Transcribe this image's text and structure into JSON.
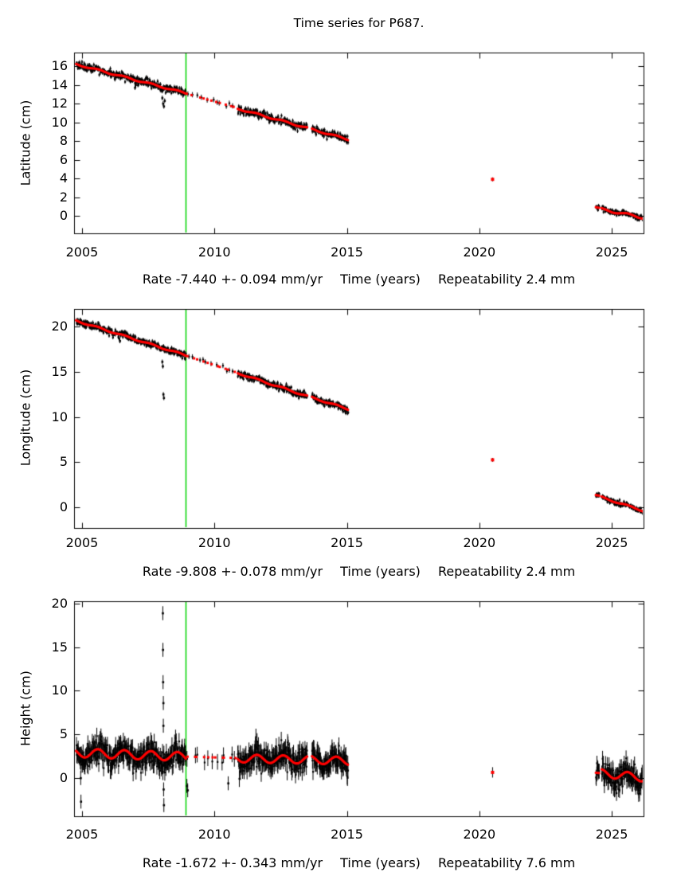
{
  "title": "Time series for P687.",
  "station": "P687",
  "colors": {
    "background": "#ffffff",
    "axis": "#000000",
    "points": "#000000",
    "trend_line": "#ff0000",
    "event_line": "#00d400",
    "text": "#000000"
  },
  "chart_data": {
    "type": "scatter",
    "title": "Time series for P687.",
    "x_axis": {
      "label": "Time (years)",
      "ticks": [
        2005,
        2010,
        2015,
        2020,
        2025
      ],
      "tick_labels": [
        "2005",
        "2010",
        "2015",
        "2020",
        "2025"
      ],
      "range": [
        2004.7,
        2026.2
      ]
    },
    "event_line_year": 2008.92,
    "plots": [
      {
        "id": "latitude",
        "ylabel": "Latitude (cm)",
        "yticks": [
          0,
          2,
          4,
          6,
          8,
          10,
          12,
          14,
          16
        ],
        "ytick_labels": [
          "0",
          "2",
          "4",
          "6",
          "8",
          "10",
          "12",
          "14",
          "16"
        ],
        "ylim": [
          -1.87,
          17.45
        ],
        "rate_mm_per_yr": -7.44,
        "rate_error_mm_per_yr": 0.094,
        "repeatability_mm": 2.4,
        "caption": {
          "rate": "Rate -7.440 +- 0.094 mm/yr",
          "time": "Time (years)",
          "repeatability": "Repeatability 2.4 mm"
        },
        "segments": [
          {
            "t": [
              2004.78,
              2008.92
            ],
            "v": [
              16.2,
              13.1
            ],
            "sigma": 0.2,
            "bar": 0.22,
            "seasonal": 0.08,
            "density": 80,
            "sparse": false
          },
          {
            "t": [
              2008.95,
              2010.85
            ],
            "v": [
              13.05,
              11.55
            ],
            "sigma": 0.15,
            "bar": 0.28,
            "seasonal": 0.0,
            "density": 6,
            "sparse": true
          },
          {
            "t": [
              2010.88,
              2013.5
            ],
            "v": [
              11.45,
              9.4
            ],
            "sigma": 0.2,
            "bar": 0.22,
            "seasonal": 0.08,
            "density": 80,
            "sparse": false
          },
          {
            "t": [
              2013.68,
              2015.05
            ],
            "v": [
              9.25,
              8.15
            ],
            "sigma": 0.2,
            "bar": 0.22,
            "seasonal": 0.08,
            "density": 80,
            "sparse": false
          },
          {
            "t": [
              2024.4,
              2024.53
            ],
            "v": [
              0.92,
              0.85
            ],
            "sigma": 0.12,
            "bar": 0.18,
            "seasonal": 0.0,
            "density": 80,
            "sparse": false
          },
          {
            "t": [
              2024.62,
              2026.2
            ],
            "v": [
              0.7,
              -0.2
            ],
            "sigma": 0.14,
            "bar": 0.18,
            "seasonal": 0.12,
            "density": 80,
            "sparse": false
          }
        ],
        "isolated_points": [
          {
            "t": 2020.5,
            "v": 3.9
          }
        ],
        "outliers": [
          [
            2007.0,
            13.7
          ],
          [
            2007.03,
            14.0
          ],
          [
            2008.03,
            12.6
          ],
          [
            2008.06,
            12.0
          ],
          [
            2008.09,
            11.7
          ],
          [
            2008.12,
            12.3
          ]
        ],
        "outlier_bar": 0.25
      },
      {
        "id": "longitude",
        "ylabel": "Longitude (cm)",
        "yticks": [
          0,
          5,
          10,
          15,
          20
        ],
        "ytick_labels": [
          "0",
          "5",
          "10",
          "15",
          "20"
        ],
        "ylim": [
          -2.29,
          21.94
        ],
        "rate_mm_per_yr": -9.808,
        "rate_error_mm_per_yr": 0.078,
        "repeatability_mm": 2.4,
        "caption": {
          "rate": "Rate -9.808 +- 0.078 mm/yr",
          "time": "Time (years)",
          "repeatability": "Repeatability 2.4 mm"
        },
        "segments": [
          {
            "t": [
              2004.78,
              2008.92
            ],
            "v": [
              20.65,
              16.8
            ],
            "sigma": 0.2,
            "bar": 0.22,
            "seasonal": 0.08,
            "density": 80,
            "sparse": false
          },
          {
            "t": [
              2008.95,
              2010.85
            ],
            "v": [
              16.75,
              14.9
            ],
            "sigma": 0.15,
            "bar": 0.28,
            "seasonal": 0.0,
            "density": 6,
            "sparse": true
          },
          {
            "t": [
              2010.88,
              2013.5
            ],
            "v": [
              14.85,
              12.3
            ],
            "sigma": 0.2,
            "bar": 0.22,
            "seasonal": 0.08,
            "density": 80,
            "sparse": false
          },
          {
            "t": [
              2013.68,
              2015.05
            ],
            "v": [
              12.15,
              10.85
            ],
            "sigma": 0.2,
            "bar": 0.22,
            "seasonal": 0.08,
            "density": 80,
            "sparse": false
          },
          {
            "t": [
              2024.4,
              2024.53
            ],
            "v": [
              1.35,
              1.28
            ],
            "sigma": 0.12,
            "bar": 0.18,
            "seasonal": 0.0,
            "density": 80,
            "sparse": false
          },
          {
            "t": [
              2024.62,
              2026.2
            ],
            "v": [
              1.1,
              -0.4
            ],
            "sigma": 0.14,
            "bar": 0.18,
            "seasonal": 0.08,
            "density": 80,
            "sparse": false
          }
        ],
        "isolated_points": [
          {
            "t": 2020.5,
            "v": 5.25
          }
        ],
        "outliers": [
          [
            2006.4,
            18.7
          ],
          [
            2006.43,
            18.4
          ],
          [
            2008.03,
            16.1
          ],
          [
            2008.05,
            15.6
          ],
          [
            2008.07,
            12.5
          ],
          [
            2008.09,
            12.1
          ]
        ],
        "outlier_bar": 0.25
      },
      {
        "id": "height",
        "ylabel": "Height (cm)",
        "yticks": [
          0,
          5,
          10,
          15,
          20
        ],
        "ytick_labels": [
          "0",
          "5",
          "10",
          "15",
          "20"
        ],
        "ylim": [
          -4.38,
          20.27
        ],
        "rate_mm_per_yr": -1.672,
        "rate_error_mm_per_yr": 0.343,
        "repeatability_mm": 7.6,
        "caption": {
          "rate": "Rate -1.672 +- 0.343 mm/yr",
          "time": "Time (years)",
          "repeatability": "Repeatability 7.6 mm"
        },
        "segments": [
          {
            "t": [
              2004.78,
              2008.92
            ],
            "v": [
              2.9,
              2.45
            ],
            "sigma": 0.7,
            "bar": 0.95,
            "seasonal": 0.5,
            "density": 80,
            "sparse": false
          },
          {
            "t": [
              2008.95,
              2010.85
            ],
            "v": [
              2.45,
              2.3
            ],
            "sigma": 0.5,
            "bar": 0.9,
            "seasonal": 0.0,
            "density": 6,
            "sparse": true
          },
          {
            "t": [
              2010.88,
              2013.5
            ],
            "v": [
              2.25,
              2.1
            ],
            "sigma": 0.7,
            "bar": 0.95,
            "seasonal": 0.45,
            "density": 80,
            "sparse": false
          },
          {
            "t": [
              2013.68,
              2015.05
            ],
            "v": [
              2.1,
              1.95
            ],
            "sigma": 0.7,
            "bar": 0.95,
            "seasonal": 0.45,
            "density": 80,
            "sparse": false
          },
          {
            "t": [
              2024.4,
              2024.53
            ],
            "v": [
              0.6,
              0.58
            ],
            "sigma": 0.55,
            "bar": 0.85,
            "seasonal": 0.0,
            "density": 80,
            "sparse": false
          },
          {
            "t": [
              2024.62,
              2026.2
            ],
            "v": [
              0.55,
              0.05
            ],
            "sigma": 0.7,
            "bar": 0.9,
            "seasonal": 0.45,
            "density": 80,
            "sparse": false
          }
        ],
        "isolated_points": [
          {
            "t": 2020.5,
            "v": 0.65
          }
        ],
        "outliers": [
          [
            2004.95,
            0.0
          ],
          [
            2004.96,
            -2.7
          ],
          [
            2008.05,
            18.9
          ],
          [
            2008.055,
            14.7
          ],
          [
            2008.06,
            11.0
          ],
          [
            2008.07,
            8.6
          ],
          [
            2008.07,
            6.0
          ],
          [
            2008.08,
            -1.3
          ],
          [
            2008.09,
            -3.1
          ],
          [
            2008.96,
            -0.9
          ],
          [
            2008.99,
            -1.4
          ],
          [
            2010.52,
            -0.6
          ]
        ],
        "outlier_bar": 0.8
      }
    ]
  }
}
